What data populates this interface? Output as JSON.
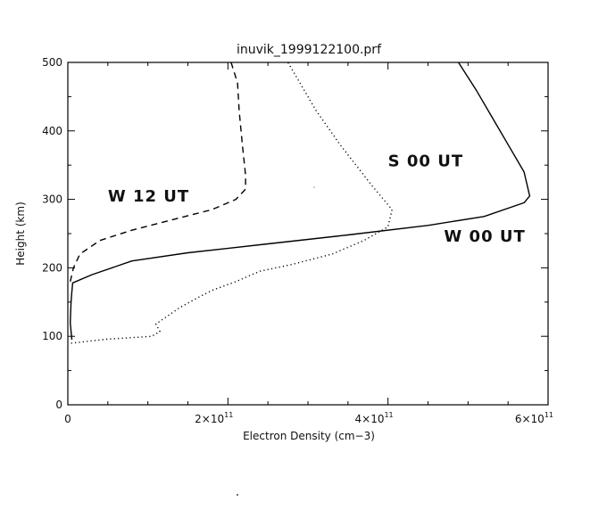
{
  "chart_data": {
    "type": "line",
    "title": "inuvik_1999122100.prf",
    "xlabel": "Electron Density (cm−3)",
    "ylabel": "Height (km)",
    "xlim": [
      0,
      600000000000.0
    ],
    "ylim": [
      0,
      500
    ],
    "x_ticks": [
      {
        "value": 0,
        "mantissa": "0",
        "exponent": ""
      },
      {
        "value": 200000000000.0,
        "mantissa": "2×10",
        "exponent": "11"
      },
      {
        "value": 400000000000.0,
        "mantissa": "4×10",
        "exponent": "11"
      },
      {
        "value": 600000000000.0,
        "mantissa": "6×10",
        "exponent": "11"
      }
    ],
    "y_ticks": [
      0,
      100,
      200,
      300,
      400,
      500
    ],
    "grid": false,
    "series": [
      {
        "name": "W 00 UT",
        "style": "solid",
        "color": "#000000",
        "points": [
          [
            5000000000.0,
            95
          ],
          [
            3000000000.0,
            120
          ],
          [
            4000000000.0,
            150
          ],
          [
            5000000000.0,
            165
          ],
          [
            6000000000.0,
            178
          ],
          [
            30000000000.0,
            190
          ],
          [
            80000000000.0,
            210
          ],
          [
            150000000000.0,
            222
          ],
          [
            250000000000.0,
            235
          ],
          [
            350000000000.0,
            248
          ],
          [
            450000000000.0,
            262
          ],
          [
            520000000000.0,
            275
          ],
          [
            570000000000.0,
            295
          ],
          [
            577000000000.0,
            305
          ],
          [
            570000000000.0,
            340
          ],
          [
            550000000000.0,
            380
          ],
          [
            530000000000.0,
            420
          ],
          [
            510000000000.0,
            460
          ],
          [
            488000000000.0,
            500
          ]
        ]
      },
      {
        "name": "W 12 UT",
        "style": "dashed",
        "color": "#000000",
        "points": [
          [
            3000000000.0,
            180
          ],
          [
            7000000000.0,
            200
          ],
          [
            15000000000.0,
            220
          ],
          [
            40000000000.0,
            240
          ],
          [
            80000000000.0,
            255
          ],
          [
            130000000000.0,
            270
          ],
          [
            180000000000.0,
            285
          ],
          [
            210000000000.0,
            300
          ],
          [
            222000000000.0,
            315
          ],
          [
            222000000000.0,
            335
          ],
          [
            218000000000.0,
            380
          ],
          [
            214000000000.0,
            430
          ],
          [
            212000000000.0,
            470
          ],
          [
            204000000000.0,
            500
          ]
        ]
      },
      {
        "name": "S 00 UT",
        "style": "dotted",
        "color": "#000000",
        "points": [
          [
            4000000000.0,
            90
          ],
          [
            20000000000.0,
            92
          ],
          [
            50000000000.0,
            96
          ],
          [
            80000000000.0,
            98
          ],
          [
            105000000000.0,
            100
          ],
          [
            115000000000.0,
            107
          ],
          [
            110000000000.0,
            118
          ],
          [
            125000000000.0,
            130
          ],
          [
            140000000000.0,
            142
          ],
          [
            160000000000.0,
            155
          ],
          [
            180000000000.0,
            167
          ],
          [
            210000000000.0,
            180
          ],
          [
            240000000000.0,
            195
          ],
          [
            280000000000.0,
            205
          ],
          [
            330000000000.0,
            220
          ],
          [
            370000000000.0,
            240
          ],
          [
            400000000000.0,
            260
          ],
          [
            405000000000.0,
            285
          ],
          [
            380000000000.0,
            320
          ],
          [
            340000000000.0,
            380
          ],
          [
            310000000000.0,
            430
          ],
          [
            290000000000.0,
            470
          ],
          [
            275000000000.0,
            500
          ]
        ]
      }
    ],
    "annotations": [
      {
        "text": "W 12 UT",
        "series": "W 12 UT"
      },
      {
        "text": "S 00 UT",
        "series": "S 00 UT"
      },
      {
        "text": "W 00 UT",
        "series": "W 00 UT"
      }
    ]
  }
}
